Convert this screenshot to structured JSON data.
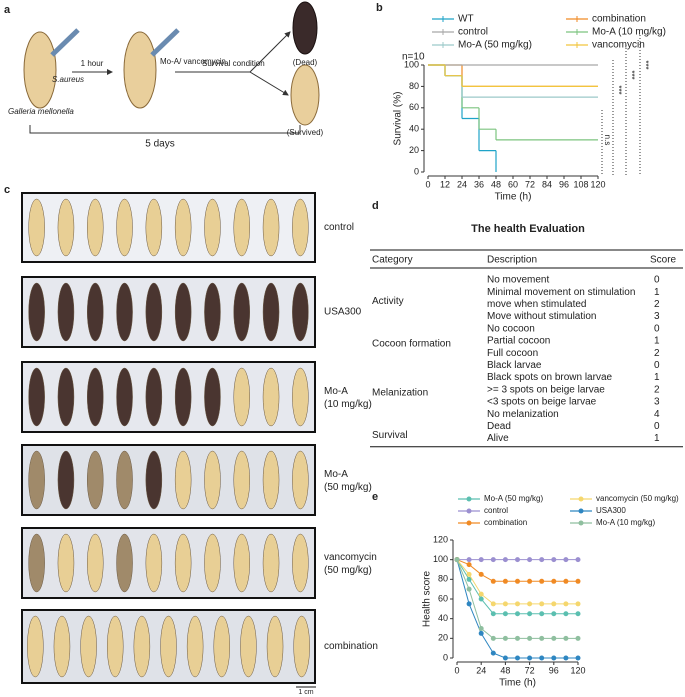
{
  "labels": [
    "a",
    "b",
    "c",
    "d",
    "e"
  ],
  "diagram": {
    "bacteria": "S.aureus",
    "organism": "Galleria mellonella",
    "interval": "1 hour",
    "treatment": "Mo-A/ vancomycin",
    "condition": "Survival condition",
    "dead": "(Dead)",
    "survived": "(Survived)",
    "duration": "5 days"
  },
  "survival_chart": {
    "type": "step",
    "ylabel": "Survival (%)",
    "xlabel": "Time (h)",
    "note": "n=10",
    "x": [
      0,
      12,
      24,
      36,
      48,
      60,
      72,
      84,
      96,
      108,
      120
    ],
    "xlim": [
      0,
      120
    ],
    "ylim": [
      0,
      100
    ],
    "xticks": [
      0,
      12,
      24,
      36,
      48,
      60,
      72,
      84,
      96,
      108,
      120
    ],
    "yticks": [
      0,
      20,
      40,
      60,
      80,
      100
    ],
    "series": [
      {
        "name": "WT",
        "color": "#1fa3c8",
        "values": [
          100,
          90,
          50,
          20,
          0,
          null,
          null,
          null,
          null,
          null,
          null
        ]
      },
      {
        "name": "combination",
        "color": "#f08a24",
        "values": [
          100,
          100,
          80,
          80,
          80,
          80,
          80,
          80,
          80,
          80,
          80
        ]
      },
      {
        "name": "control",
        "color": "#a8a8a8",
        "values": [
          100,
          100,
          100,
          100,
          100,
          100,
          100,
          100,
          100,
          100,
          100
        ]
      },
      {
        "name": "Mo-A (10 mg/kg)",
        "color": "#7cc47f",
        "values": [
          100,
          90,
          60,
          40,
          30,
          30,
          30,
          30,
          30,
          30,
          30
        ]
      },
      {
        "name": "Mo-A (50 mg/kg)",
        "color": "#9cc9c9",
        "values": [
          100,
          90,
          70,
          70,
          70,
          70,
          70,
          70,
          70,
          70,
          70
        ]
      },
      {
        "name": "vancomycin",
        "color": "#f2c53d",
        "values": [
          100,
          90,
          80,
          80,
          80,
          80,
          80,
          80,
          80,
          80,
          80
        ]
      }
    ],
    "significance": [
      "n.s",
      "***",
      "***",
      "***"
    ]
  },
  "photos": {
    "rows": [
      "control",
      "USA300",
      "Mo-A (10 mg/kg)",
      "Mo-A (50 mg/kg)",
      "vancomycin (50 mg/kg)",
      "combination"
    ],
    "scale": "1 cm"
  },
  "table": {
    "title": "The health Evaluation",
    "header": [
      "Category",
      "Description",
      "Score"
    ],
    "groups": [
      {
        "category": "Activity",
        "rows": [
          [
            "No movement",
            0
          ],
          [
            "Minimal movement on stimulation",
            1
          ],
          [
            "move when stimulated",
            2
          ],
          [
            "Move without stimulation",
            3
          ]
        ]
      },
      {
        "category": "Cocoon formation",
        "rows": [
          [
            "No cocoon",
            0
          ],
          [
            "Partial cocoon",
            1
          ],
          [
            "Full cocoon",
            2
          ]
        ]
      },
      {
        "category": "Melanization",
        "rows": [
          [
            "Black larvae",
            0
          ],
          [
            "Black spots on brown larvae",
            1
          ],
          [
            ">= 3 spots on beige larvae",
            2
          ],
          [
            "<3 spots on beige larvae",
            3
          ],
          [
            "No melanization",
            4
          ]
        ]
      },
      {
        "category": "Survival",
        "rows": [
          [
            "Dead",
            0
          ],
          [
            "Alive",
            1
          ]
        ]
      }
    ]
  },
  "health_chart": {
    "type": "line",
    "ylabel": "Health score",
    "xlabel": "Time (h)",
    "x": [
      0,
      12,
      24,
      36,
      48,
      60,
      72,
      84,
      96,
      108,
      120
    ],
    "xlim": [
      0,
      120
    ],
    "ylim": [
      0,
      120
    ],
    "xticks": [
      0,
      24,
      48,
      72,
      96,
      120
    ],
    "yticks": [
      0,
      20,
      40,
      60,
      80,
      100,
      120
    ],
    "series": [
      {
        "name": "Mo-A (50 mg/kg)",
        "color": "#5bbfb0",
        "values": [
          100,
          80,
          60,
          45,
          45,
          45,
          45,
          45,
          45,
          45,
          45
        ]
      },
      {
        "name": "vancomycin (50 mg/kg)",
        "color": "#f5d76e",
        "values": [
          100,
          85,
          65,
          55,
          55,
          55,
          55,
          55,
          55,
          55,
          55
        ]
      },
      {
        "name": "control",
        "color": "#9b8fd0",
        "values": [
          100,
          100,
          100,
          100,
          100,
          100,
          100,
          100,
          100,
          100,
          100
        ]
      },
      {
        "name": "USA300",
        "color": "#2e86c1",
        "values": [
          100,
          55,
          25,
          5,
          0,
          0,
          0,
          0,
          0,
          0,
          0
        ]
      },
      {
        "name": "combination",
        "color": "#f08a24",
        "values": [
          100,
          95,
          85,
          78,
          78,
          78,
          78,
          78,
          78,
          78,
          78
        ]
      },
      {
        "name": "Mo-A (10 mg/kg)",
        "color": "#8fbf9f",
        "values": [
          100,
          70,
          30,
          20,
          20,
          20,
          20,
          20,
          20,
          20,
          20
        ]
      }
    ]
  }
}
